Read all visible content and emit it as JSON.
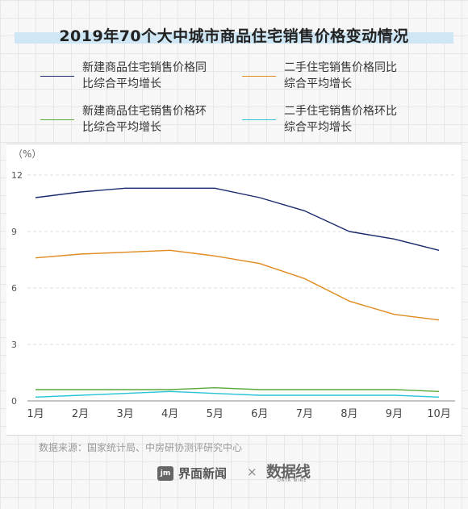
{
  "title": "2019年70个大中城市商品住宅销售价格变动情况",
  "legend": [
    {
      "label": "新建商品住宅销售价格同比综合平均增长",
      "color": "#1a2a6c"
    },
    {
      "label": "二手住宅销售价格同比综合平均增长",
      "color": "#e08a1e"
    },
    {
      "label": "新建商品住宅销售价格环比综合平均增长",
      "color": "#5aaa3a"
    },
    {
      "label": "二手住宅销售价格环比综合平均增长",
      "color": "#27c3d6"
    }
  ],
  "chart_data": {
    "type": "line",
    "unit_label": "（%）",
    "categories": [
      "1月",
      "2月",
      "3月",
      "4月",
      "5月",
      "6月",
      "7月",
      "8月",
      "9月",
      "10月"
    ],
    "yticks": [
      0,
      3,
      6,
      9,
      12
    ],
    "ylim": [
      0,
      12
    ],
    "grid": true,
    "series": [
      {
        "name": "新建商品住宅销售价格同比综合平均增长",
        "color": "#1a2a6c",
        "values": [
          10.8,
          11.1,
          11.3,
          11.3,
          11.3,
          10.8,
          10.1,
          9.0,
          8.6,
          8.0
        ]
      },
      {
        "name": "二手住宅销售价格同比综合平均增长",
        "color": "#e08a1e",
        "values": [
          7.6,
          7.8,
          7.9,
          8.0,
          7.7,
          7.3,
          6.5,
          5.3,
          4.6,
          4.3
        ]
      },
      {
        "name": "新建商品住宅销售价格环比综合平均增长",
        "color": "#5aaa3a",
        "values": [
          0.6,
          0.6,
          0.6,
          0.6,
          0.7,
          0.6,
          0.6,
          0.6,
          0.6,
          0.5
        ]
      },
      {
        "name": "二手住宅销售价格环比综合平均增长",
        "color": "#27c3d6",
        "values": [
          0.2,
          0.3,
          0.4,
          0.5,
          0.4,
          0.3,
          0.3,
          0.3,
          0.3,
          0.2
        ]
      }
    ]
  },
  "source": "数据来源：国家统计局、中房研协测评研究中心",
  "footer": {
    "brand_icon": "jm",
    "brand": "界面新闻",
    "times": "×",
    "logo2": "数据线",
    "logo2_sub": "DATA WIRE"
  }
}
